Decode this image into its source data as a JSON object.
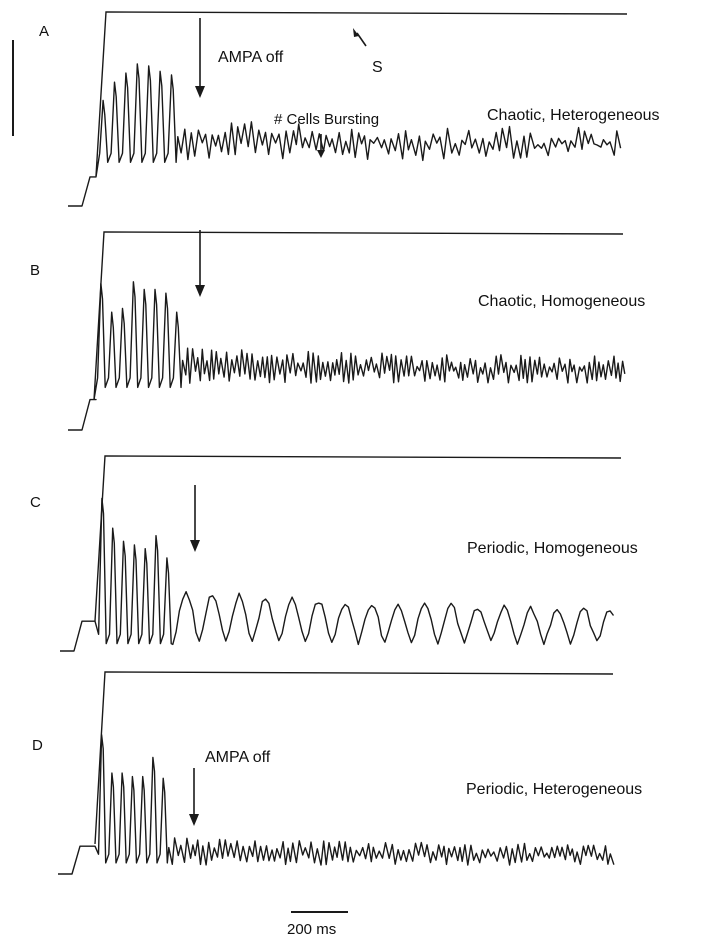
{
  "chart_data": {
    "type": "line",
    "scale_bar": {
      "label": "200 ms",
      "duration_ms": 200
    },
    "panels": [
      {
        "letter": "A",
        "label": "Chaotic, Heterogeneous",
        "annotations": {
          "arrow_label": "AMPA off",
          "s_label": "S",
          "bursting_label": "# Cells Bursting"
        },
        "burst": {
          "first_peak": 0.58,
          "peaks": 7,
          "peak_heights": [
            0.58,
            0.68,
            0.73,
            0.78,
            0.77,
            0.74,
            0.72
          ],
          "period_ms": 40
        },
        "decay": {
          "amplitude": 0.13,
          "noise": 0.1,
          "period_ms": 24,
          "regular": false
        },
        "baseline": 0.3
      },
      {
        "letter": "B",
        "label": "Chaotic, Homogeneous",
        "annotations": {},
        "burst": {
          "first_peak": 0.77,
          "peaks": 8,
          "peak_heights": [
            0.77,
            0.62,
            0.64,
            0.78,
            0.74,
            0.74,
            0.72,
            0.62
          ],
          "period_ms": 38
        },
        "decay": {
          "amplitude": 0.12,
          "noise": 0.07,
          "period_ms": 18,
          "regular": false
        },
        "baseline": 0.28
      },
      {
        "letter": "C",
        "label": "Periodic, Homogeneous",
        "annotations": {},
        "burst": {
          "first_peak": 0.82,
          "peaks": 7,
          "peak_heights": [
            0.82,
            0.66,
            0.59,
            0.57,
            0.55,
            0.62,
            0.5
          ],
          "period_ms": 38
        },
        "decay": {
          "amplitude": 0.27,
          "noise": 0.03,
          "period_ms": 93,
          "regular": true
        },
        "baseline": 0.05
      },
      {
        "letter": "D",
        "label": "Periodic, Heterogeneous",
        "annotations": {
          "arrow_label": "AMPA off"
        },
        "burst": {
          "first_peak": 0.8,
          "peaks": 7,
          "peak_heights": [
            0.8,
            0.58,
            0.58,
            0.56,
            0.56,
            0.67,
            0.55
          ],
          "period_ms": 36
        },
        "decay": {
          "amplitude": 0.1,
          "noise": 0.06,
          "period_ms": 20,
          "regular": false
        },
        "baseline": 0.08
      }
    ]
  }
}
